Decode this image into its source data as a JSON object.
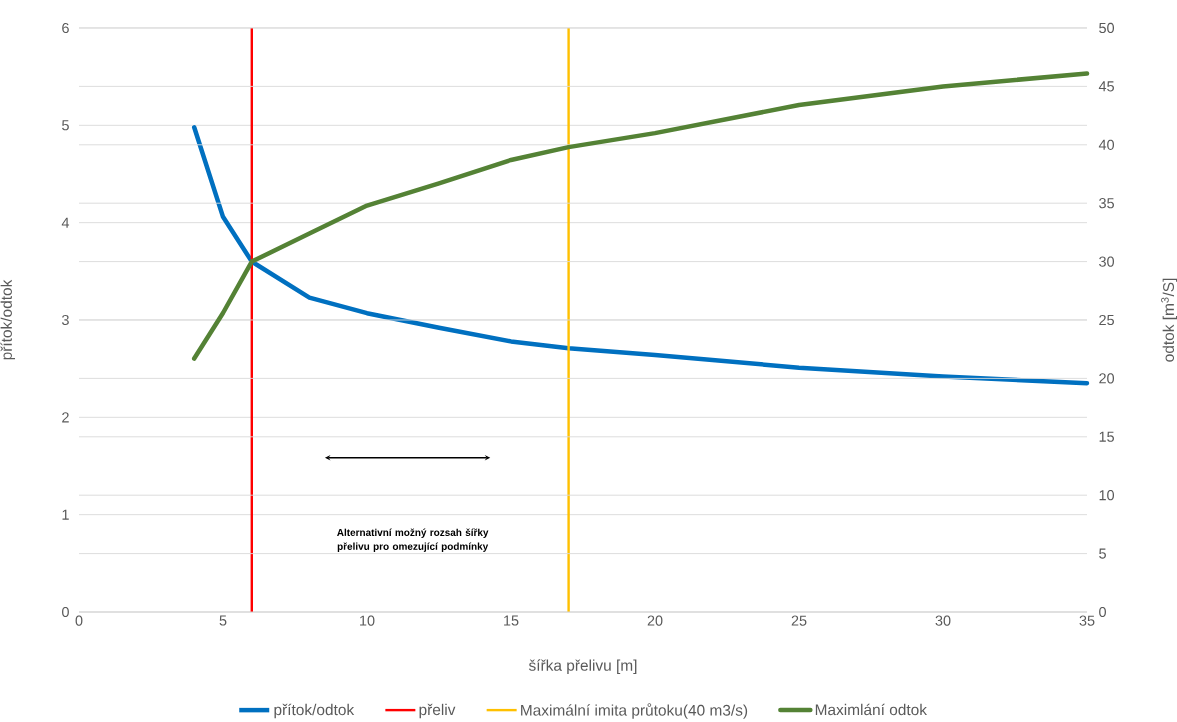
{
  "chart_data": {
    "type": "line",
    "xlabel": "šířka přelivu [m]",
    "ylabel": "přítok/odtok",
    "y2label": "odtok [m$^{3}$/S]",
    "x": [
      4,
      5,
      6,
      8,
      10,
      12.5,
      15,
      17,
      20,
      25,
      30,
      35
    ],
    "series": [
      {
        "name": "přítok/odtok",
        "color": "#0070c0",
        "values": [
          4.98,
          4.06,
          3.6,
          3.23,
          3.07,
          2.92,
          2.78,
          2.71,
          2.64,
          2.51,
          2.42,
          2.35
        ]
      },
      {
        "name": "Maximlání odtok",
        "color": "#548235",
        "axis": "y2",
        "values": [
          21.7,
          25.6,
          30.0,
          32.4,
          34.8,
          36.7,
          38.7,
          39.8,
          41.0,
          43.4,
          45.0,
          46.1
        ]
      }
    ],
    "ref_lines": [
      {
        "axis": "x",
        "value": 6,
        "label": "přeliv",
        "color": "#ff0000"
      },
      {
        "axis": "x",
        "value": 17,
        "label": "Maximální imita průtoku(40 m3/s)",
        "color": "#ffc000"
      }
    ],
    "annotations": [
      "Alternativní možný rozsah šířky přelivu pro omezující podmínky"
    ],
    "xlim": [
      0,
      35
    ],
    "xticks": [
      0,
      5,
      10,
      15,
      20,
      25,
      30,
      35
    ],
    "ylim": [
      0,
      6
    ],
    "yticks": [
      0,
      1,
      2,
      3,
      4,
      5,
      6
    ],
    "y2lim": [
      0,
      50
    ],
    "y2ticks": [
      0,
      5,
      10,
      15,
      20,
      25,
      30,
      35,
      40,
      45,
      50
    ],
    "grid": "y",
    "legend": "bottom",
    "marker": "none",
    "line_style": "solid"
  }
}
